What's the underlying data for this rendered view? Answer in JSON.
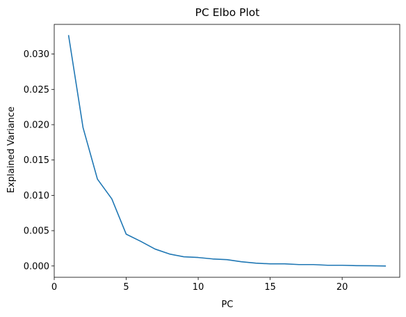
{
  "chart_data": {
    "type": "line",
    "title": "PC Elbo Plot",
    "xlabel": "PC",
    "ylabel": "Explained Variance",
    "xlim": [
      0,
      24
    ],
    "ylim": [
      -0.0016,
      0.0342
    ],
    "x_ticks": [
      0,
      5,
      10,
      15,
      20
    ],
    "y_ticks": [
      0.0,
      0.005,
      0.01,
      0.015,
      0.02,
      0.025,
      0.03
    ],
    "x_tick_labels": [
      "0",
      "5",
      "10",
      "15",
      "20"
    ],
    "y_tick_labels": [
      "0.000",
      "0.005",
      "0.010",
      "0.015",
      "0.020",
      "0.025",
      "0.030"
    ],
    "grid": false,
    "legend": "none",
    "line_color": "#1f77b4",
    "series": [
      {
        "x": [
          1,
          2,
          3,
          4,
          5,
          6,
          7,
          8,
          9,
          10,
          11,
          12,
          13,
          14,
          15,
          16,
          17,
          18,
          19,
          20,
          21,
          22,
          23
        ],
        "values": [
          0.0326,
          0.0196,
          0.0123,
          0.0095,
          0.0045,
          0.0035,
          0.0024,
          0.0017,
          0.0013,
          0.0012,
          0.001,
          0.0009,
          0.0006,
          0.0004,
          0.0003,
          0.0003,
          0.0002,
          0.0002,
          0.0001,
          0.0001,
          5e-05,
          3e-05,
          0.0
        ]
      }
    ]
  }
}
